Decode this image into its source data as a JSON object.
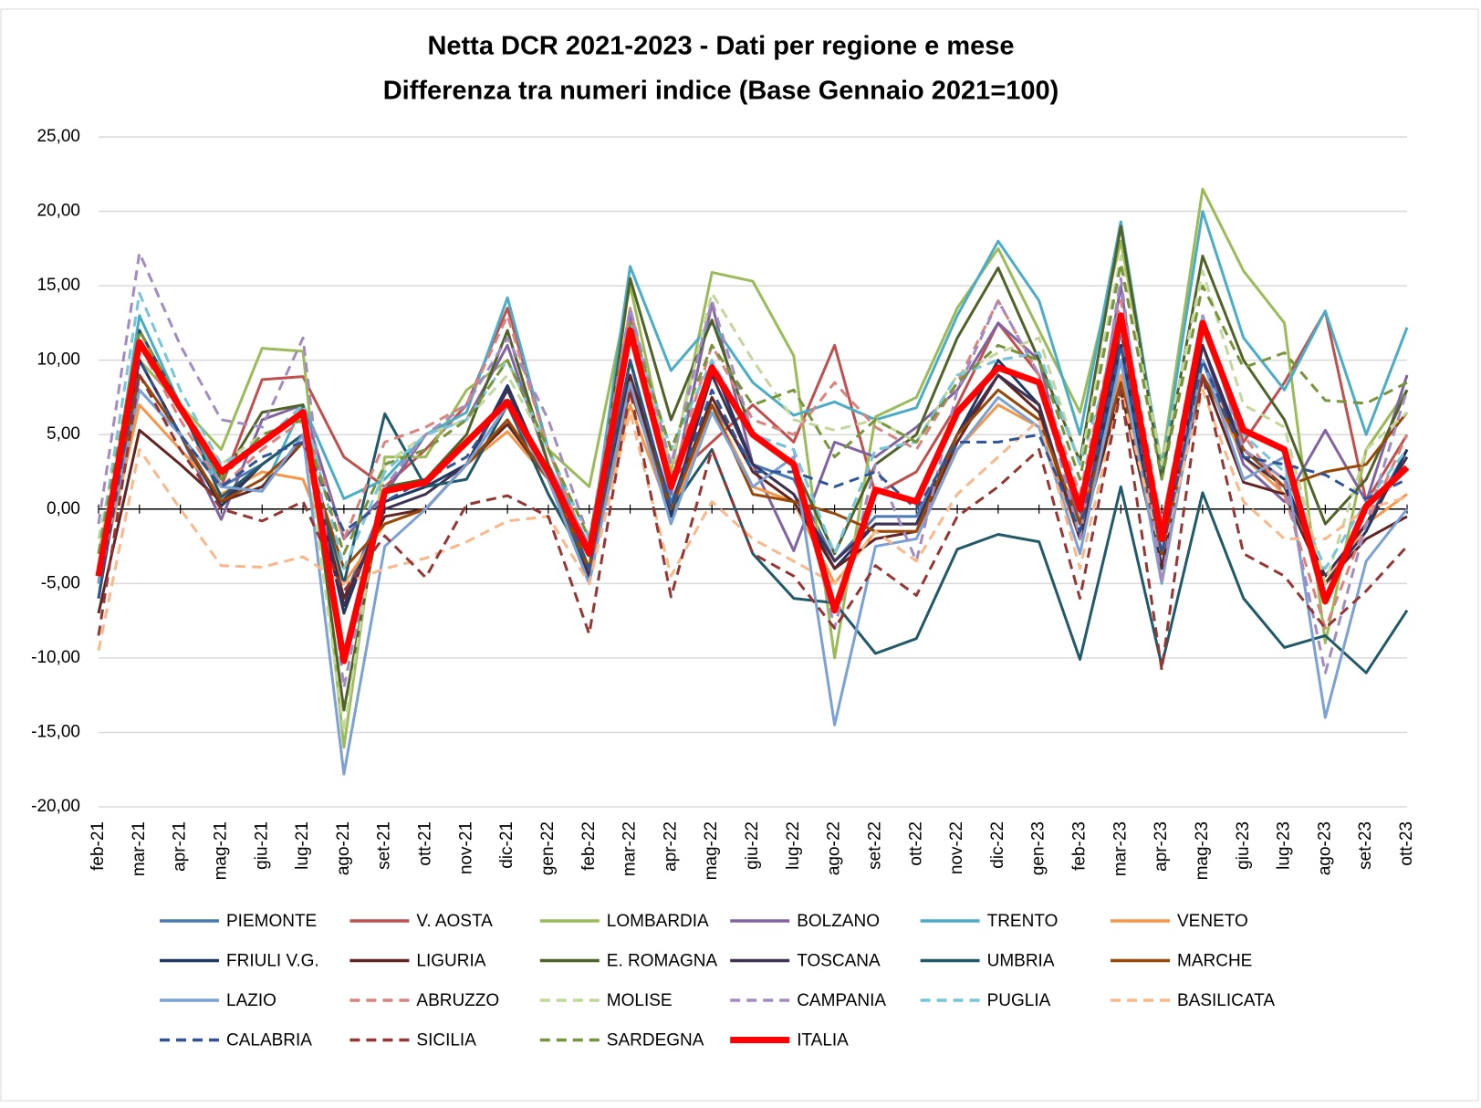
{
  "chart_data": {
    "type": "line",
    "title": "Netta DCR 2021-2023 - Dati per regione e mese",
    "subtitle": "Differenza tra numeri indice (Base Gennaio 2021=100)",
    "categories": [
      "feb-21",
      "mar-21",
      "apr-21",
      "mag-21",
      "giu-21",
      "lug-21",
      "ago-21",
      "set-21",
      "ott-21",
      "nov-21",
      "dic-21",
      "gen-22",
      "feb-22",
      "mar-22",
      "apr-22",
      "mag-22",
      "giu-22",
      "lug-22",
      "ago-22",
      "set-22",
      "ott-22",
      "nov-22",
      "dic-22",
      "gen-23",
      "feb-23",
      "mar-23",
      "apr-23",
      "mag-23",
      "giu-23",
      "lug-23",
      "ago-23",
      "set-23",
      "ott-23"
    ],
    "ylim": [
      -20,
      25
    ],
    "yticks": [
      {
        "value": -20,
        "label": "-20,00"
      },
      {
        "value": -15,
        "label": "-15,00"
      },
      {
        "value": -10,
        "label": "-10,00"
      },
      {
        "value": -5,
        "label": "-5,00"
      },
      {
        "value": 0,
        "label": "0,00"
      },
      {
        "value": 5,
        "label": "5,00"
      },
      {
        "value": 10,
        "label": "10,00"
      },
      {
        "value": 15,
        "label": "15,00"
      },
      {
        "value": 20,
        "label": "20,00"
      },
      {
        "value": 25,
        "label": "25,00"
      }
    ],
    "grid": true,
    "legend": "bottom",
    "series": [
      {
        "name": "PIEMONTE",
        "color": "#4a7ab5",
        "dash": false,
        "bold": false,
        "values": [
          -5,
          8,
          5,
          1.5,
          3,
          5,
          -6,
          0.5,
          1.5,
          3,
          7,
          2,
          -4,
          9,
          0.5,
          7,
          3,
          2,
          -3.5,
          -0.5,
          -0.5,
          5,
          8,
          6,
          -1,
          10,
          -3,
          10,
          4,
          2,
          -5,
          -1,
          4
        ]
      },
      {
        "name": "V. AOSTA",
        "color": "#c0504d",
        "dash": false,
        "bold": false,
        "values": [
          -4,
          12,
          7,
          1.5,
          8.7,
          8.9,
          3.5,
          1.5,
          4,
          7,
          13.5,
          4,
          -3,
          13,
          2,
          4.5,
          7,
          4.5,
          11,
          1,
          2.5,
          7,
          12.5,
          9,
          -1,
          12,
          -1,
          12.5,
          4.5,
          8.5,
          13.3,
          0.5,
          5
        ]
      },
      {
        "name": "LOMBARDIA",
        "color": "#9bbb59",
        "dash": false,
        "bold": false,
        "values": [
          -3,
          10,
          7,
          4,
          10.8,
          10.6,
          -16,
          3.5,
          3.5,
          8,
          10,
          4,
          1.5,
          15,
          2.5,
          15.9,
          15.3,
          10.3,
          -10,
          6.2,
          7.5,
          13.5,
          17.5,
          12,
          6.5,
          18,
          3,
          21.5,
          16,
          12.5,
          -9,
          4,
          8
        ]
      },
      {
        "name": "BOLZANO",
        "color": "#8064a2",
        "dash": false,
        "bold": false,
        "values": [
          -4,
          10,
          5,
          -0.7,
          6,
          7,
          -2,
          1,
          5,
          6,
          11,
          3,
          -2.5,
          13,
          1,
          13.8,
          3,
          -2.8,
          4.5,
          3.5,
          5.5,
          8,
          12.5,
          10,
          -1,
          15,
          -4,
          11,
          3,
          0.5,
          5.3,
          0.5,
          9
        ]
      },
      {
        "name": "TRENTO",
        "color": "#4bacc6",
        "dash": false,
        "bold": false,
        "values": [
          -5,
          13,
          7,
          1.5,
          1.2,
          7,
          0.7,
          2,
          5,
          6.5,
          14.2,
          4,
          -3,
          16.3,
          9.3,
          12.5,
          8.5,
          6.3,
          7.2,
          6,
          6.8,
          13,
          18,
          14,
          5,
          19.3,
          2.5,
          20,
          11.5,
          8,
          13.3,
          5,
          12.2
        ]
      },
      {
        "name": "VENETO",
        "color": "#f79646",
        "dash": false,
        "bold": false,
        "values": [
          -5,
          7,
          4,
          1,
          2.5,
          2,
          -5,
          -1,
          0,
          3,
          5.2,
          2,
          -4,
          7,
          -0.5,
          7,
          1.5,
          0.5,
          -5,
          -1.5,
          -1.5,
          4,
          7,
          5.5,
          -2,
          9,
          -4,
          9,
          3.5,
          1,
          -5,
          -1,
          1
        ]
      },
      {
        "name": "FRIULI V.G.",
        "color": "#1f3864",
        "dash": false,
        "bold": false,
        "values": [
          -6,
          10,
          5,
          0.2,
          3,
          5,
          -7,
          0.5,
          1.5,
          3,
          8.3,
          2,
          -5,
          10,
          -0.5,
          9.8,
          3,
          1,
          -4,
          -1,
          -1,
          5,
          10,
          7,
          -2,
          11,
          -4,
          11,
          4,
          2,
          -5,
          -1.5,
          4
        ]
      },
      {
        "name": "LIGURIA",
        "color": "#632523",
        "dash": false,
        "bold": false,
        "values": [
          -7,
          5.3,
          3,
          0.5,
          1.5,
          4.5,
          -6,
          -0.5,
          0,
          3,
          5.7,
          2,
          -4.5,
          9,
          0,
          7.5,
          2.5,
          0.5,
          -4,
          -2,
          -1.5,
          4.5,
          9,
          6.5,
          -2,
          8,
          -4,
          9,
          1.8,
          1,
          -5,
          -2,
          -0.5
        ]
      },
      {
        "name": "E. ROMAGNA",
        "color": "#4f6228",
        "dash": false,
        "bold": false,
        "values": [
          -5,
          12,
          7,
          2,
          6.5,
          7,
          -13.5,
          1.5,
          2,
          5,
          12,
          3,
          -4,
          15.5,
          6,
          12.7,
          5,
          3,
          -3,
          3,
          5,
          11.5,
          16.2,
          10,
          3.2,
          19,
          2,
          17,
          10,
          6,
          -1,
          2,
          8
        ]
      },
      {
        "name": "TOSCANA",
        "color": "#3f3151",
        "dash": false,
        "bold": false,
        "values": [
          -5,
          10,
          5,
          0.5,
          3,
          5,
          -6.5,
          0,
          1,
          3,
          8,
          2,
          -4.5,
          10,
          0,
          9,
          3,
          1,
          -3.5,
          -1,
          -1,
          5,
          9,
          7,
          -2,
          12,
          -3,
          11,
          3.5,
          1.5,
          -4.5,
          -1,
          3.5
        ]
      },
      {
        "name": "UMBRIA",
        "color": "#215968",
        "dash": false,
        "bold": false,
        "values": [
          -6,
          12,
          7,
          0.8,
          3,
          5,
          -5,
          6.4,
          1.5,
          2,
          7,
          1,
          -4,
          10,
          0,
          4,
          -3,
          -6,
          -6.3,
          -9.7,
          -8.7,
          -2.7,
          -1.7,
          -2.2,
          -10.1,
          1.5,
          -10.5,
          1.1,
          -6,
          -9.3,
          -8.5,
          -11,
          -6.8
        ]
      },
      {
        "name": "MARCHE",
        "color": "#984807",
        "dash": false,
        "bold": false,
        "values": [
          -5,
          9,
          5,
          0.5,
          2,
          4.5,
          -4,
          -1,
          0,
          3,
          6,
          2,
          -4,
          8,
          0,
          7,
          1,
          0.5,
          -0.3,
          -1.5,
          -1.5,
          5,
          8,
          6,
          -1,
          8.5,
          -3,
          9,
          4,
          1.5,
          2.5,
          3,
          6.5
        ]
      },
      {
        "name": "LAZIO",
        "color": "#7ba0d4",
        "dash": false,
        "bold": false,
        "values": [
          -5,
          8,
          5,
          1.5,
          1.2,
          5,
          -17.8,
          -2.5,
          0,
          3,
          7,
          2,
          -5,
          8.5,
          -1,
          6.5,
          1.5,
          3.5,
          -14.5,
          -2.5,
          -2,
          4,
          7.5,
          5.5,
          -3,
          10,
          -5,
          10,
          2,
          3.5,
          -14,
          -3.5,
          0
        ]
      },
      {
        "name": "ABRUZZO",
        "color": "#d9837f",
        "dash": true,
        "bold": false,
        "values": [
          -3,
          11,
          6,
          1.5,
          4,
          6,
          -2,
          4.5,
          5.5,
          7,
          13,
          4,
          -3,
          13.5,
          2,
          11,
          6,
          5,
          8.5,
          5.5,
          4,
          8.5,
          14,
          9,
          1,
          14,
          -1,
          13,
          5,
          1,
          -8,
          -1,
          5
        ]
      },
      {
        "name": "MOLISE",
        "color": "#c3d69b",
        "dash": true,
        "bold": false,
        "values": [
          -2,
          11,
          7,
          3,
          5,
          6,
          -15,
          3,
          5,
          6,
          9,
          4,
          -2,
          12.5,
          3,
          14.5,
          10,
          6,
          5.3,
          6,
          4.5,
          9,
          10.5,
          11.5,
          3,
          17,
          3,
          16,
          7,
          5.5,
          -5,
          4,
          6.5
        ]
      },
      {
        "name": "CAMPANIA",
        "color": "#a28cbf",
        "dash": true,
        "bold": false,
        "values": [
          -1,
          17.2,
          11,
          6,
          5.5,
          11.5,
          -12,
          1.5,
          5,
          7,
          11.5,
          6,
          -2,
          13.5,
          3,
          14,
          5,
          4,
          -8,
          3,
          -3.5,
          8,
          14,
          9,
          -2,
          15.5,
          -5,
          13,
          4,
          2,
          -11,
          -1,
          8
        ]
      },
      {
        "name": "PUGLIA",
        "color": "#78c4d8",
        "dash": true,
        "bold": false,
        "values": [
          -3,
          14.5,
          8,
          3,
          4.5,
          7,
          -4,
          2.5,
          5,
          6,
          10,
          4,
          -2,
          12.5,
          4,
          10,
          5,
          4,
          -3,
          4,
          4.5,
          9,
          10,
          10.5,
          3,
          12,
          -2,
          13,
          5,
          2.5,
          -4,
          0.5,
          4
        ]
      },
      {
        "name": "BASILICATA",
        "color": "#fab88a",
        "dash": true,
        "bold": false,
        "values": [
          -9.5,
          4,
          0,
          -3.8,
          -3.9,
          -3.2,
          -5,
          -4,
          -3.3,
          -2.2,
          -0.8,
          -0.5,
          -5,
          6.5,
          -4.5,
          0.5,
          -2,
          -3.5,
          -5,
          -1.5,
          -3.5,
          1,
          3.5,
          6,
          -4,
          8,
          -3,
          8,
          0.5,
          -2,
          -2,
          0,
          0.8
        ]
      },
      {
        "name": "CALABRIA",
        "color": "#2f5597",
        "dash": true,
        "bold": false,
        "values": [
          -6,
          10,
          5,
          1.5,
          3.5,
          4.5,
          -1.5,
          0.5,
          2,
          3.5,
          7.5,
          2.5,
          -4,
          10,
          0,
          8,
          2.5,
          2.5,
          1.5,
          2.5,
          0,
          4.5,
          4.5,
          5,
          -1.5,
          11,
          -3,
          10,
          3.5,
          3,
          2.3,
          0.7,
          2
        ]
      },
      {
        "name": "SICILIA",
        "color": "#943634",
        "dash": true,
        "bold": false,
        "values": [
          -8.5,
          9,
          4,
          0,
          -0.8,
          0.5,
          -5.5,
          -1.8,
          -4.6,
          0.3,
          0.9,
          -0.5,
          -8.4,
          8,
          -5.9,
          4,
          -3,
          -4.5,
          -8,
          -3.8,
          -5.8,
          -0.5,
          1.5,
          4,
          -6,
          8,
          -10.8,
          9,
          -3,
          -4.5,
          -8,
          -5.5,
          -2.5
        ]
      },
      {
        "name": "SARDEGNA",
        "color": "#77933c",
        "dash": true,
        "bold": false,
        "values": [
          -3,
          12,
          7,
          2,
          5,
          6,
          -3,
          3,
          4,
          6,
          10,
          4,
          -2,
          12.5,
          4,
          11,
          7,
          8,
          3.5,
          6,
          4.5,
          8.5,
          11,
          10,
          2,
          16.5,
          2,
          15,
          9.5,
          10.5,
          7.3,
          7.1,
          8.5
        ]
      },
      {
        "name": "ITALIA",
        "color": "#ff0000",
        "dash": false,
        "bold": true,
        "values": [
          -4.5,
          11.2,
          6.8,
          2.5,
          4.5,
          6.5,
          -10.2,
          1.2,
          1.8,
          4.5,
          7.2,
          2.5,
          -3,
          12,
          1.5,
          9.5,
          5,
          3,
          -6.8,
          1.3,
          0.5,
          6.5,
          9.5,
          8.5,
          0,
          13,
          -2,
          12.5,
          5.3,
          4,
          -6.2,
          0.2,
          2.8
        ]
      }
    ]
  }
}
